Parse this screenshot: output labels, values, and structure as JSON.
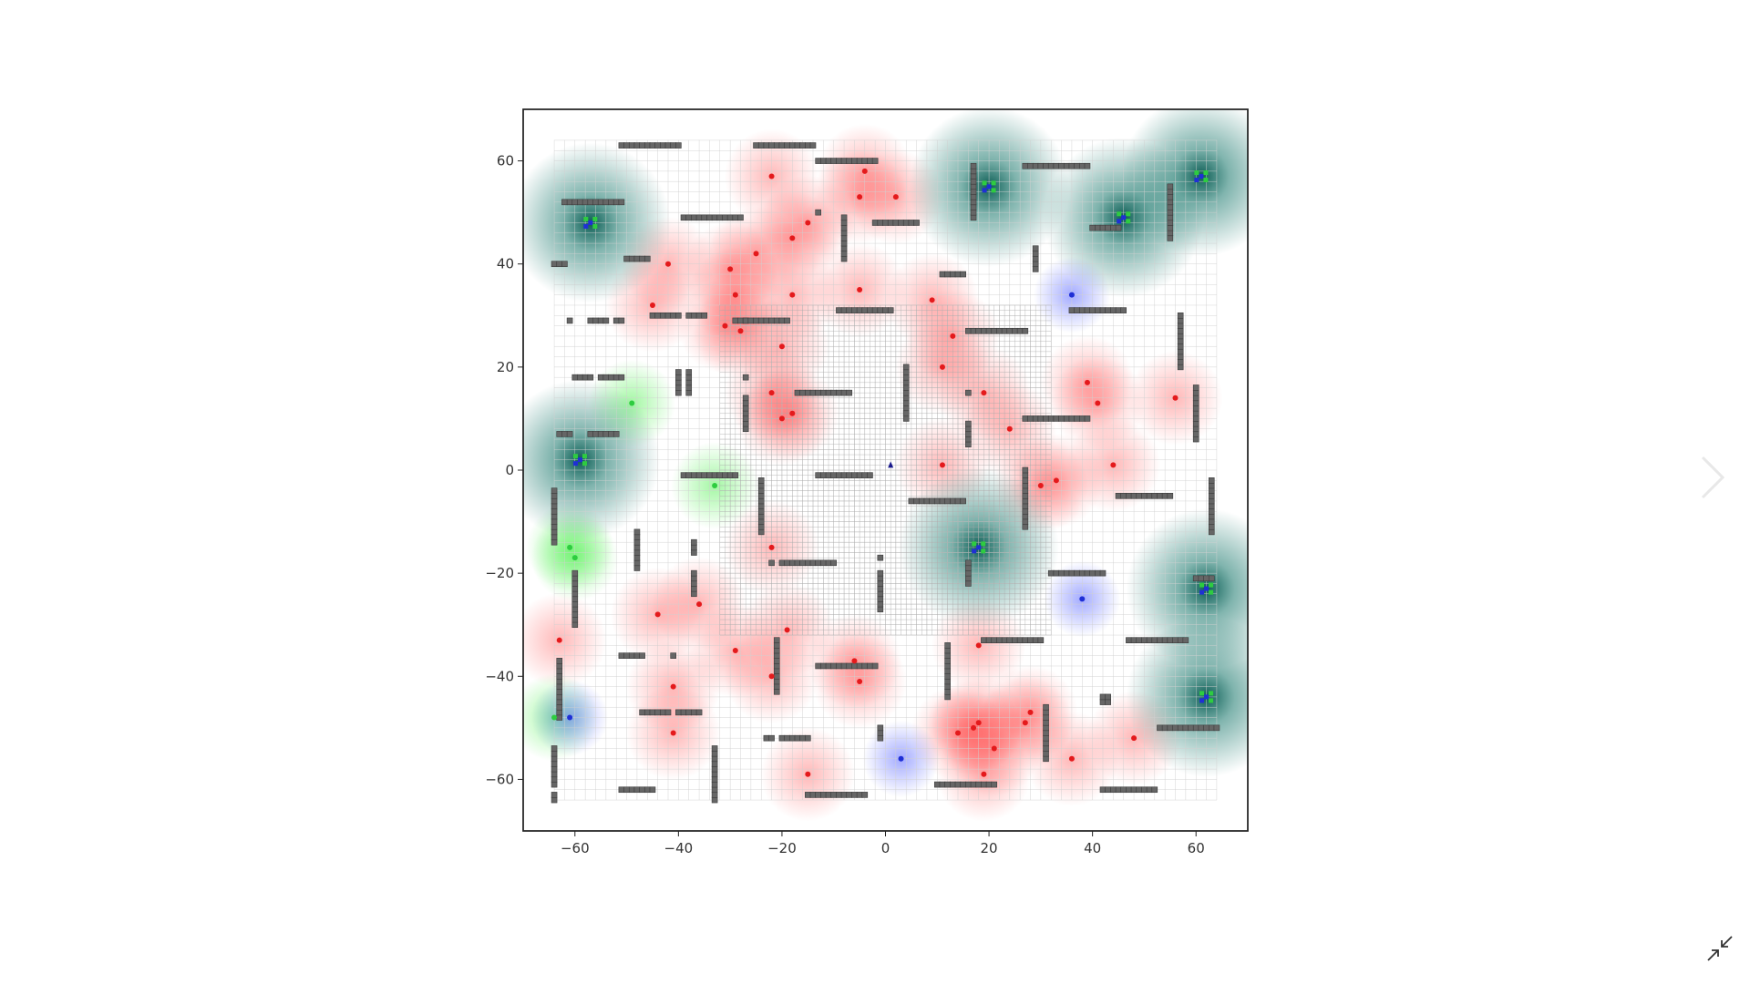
{
  "viewer": {
    "next_icon": "chevron-right-icon",
    "collapse_icon": "collapse-arrows-icon"
  },
  "chart_data": {
    "type": "scatter",
    "title": "",
    "xlabel": "",
    "ylabel": "",
    "xlim": [
      -70,
      70
    ],
    "ylim": [
      -70,
      70
    ],
    "x_ticks": [
      -60,
      -40,
      -20,
      0,
      20,
      40,
      60
    ],
    "y_ticks": [
      60,
      40,
      20,
      0,
      -20,
      -40,
      -60
    ],
    "grid": true,
    "grid_extent": [
      -64,
      64
    ],
    "dense_grid_region": {
      "x": [
        -32,
        32
      ],
      "y": [
        -32,
        32
      ]
    },
    "colors": {
      "red_source": "#e41a1c",
      "green_source": "#2ecc40",
      "teal_source": "#006d5b",
      "blue_source": "#1f2fd6",
      "obstacle": "#666666",
      "agent": "#1a1a8c"
    },
    "series": [
      {
        "key": "red",
        "points": [
          [
            -22,
            57
          ],
          [
            -4,
            58
          ],
          [
            -5,
            53
          ],
          [
            2,
            53
          ],
          [
            -15,
            48
          ],
          [
            -18,
            45
          ],
          [
            -25,
            42
          ],
          [
            -42,
            40
          ],
          [
            -30,
            39
          ],
          [
            -29,
            34
          ],
          [
            -18,
            34
          ],
          [
            -5,
            35
          ],
          [
            9,
            33
          ],
          [
            -45,
            32
          ],
          [
            -31,
            28
          ],
          [
            -28,
            27
          ],
          [
            13,
            26
          ],
          [
            -20,
            24
          ],
          [
            11,
            20
          ],
          [
            -22,
            15
          ],
          [
            19,
            15
          ],
          [
            39,
            17
          ],
          [
            41,
            13
          ],
          [
            56,
            14
          ],
          [
            -20,
            10
          ],
          [
            -18,
            11
          ],
          [
            24,
            8
          ],
          [
            11,
            1
          ],
          [
            44,
            1
          ],
          [
            30,
            -3
          ],
          [
            33,
            -2
          ],
          [
            -22,
            -15
          ],
          [
            -36,
            -26
          ],
          [
            -44,
            -28
          ],
          [
            -63,
            -33
          ],
          [
            -19,
            -31
          ],
          [
            -29,
            -35
          ],
          [
            18,
            -34
          ],
          [
            -6,
            -37
          ],
          [
            -41,
            -42
          ],
          [
            -5,
            -41
          ],
          [
            -22,
            -40
          ],
          [
            -41,
            -51
          ],
          [
            18,
            -49
          ],
          [
            17,
            -50
          ],
          [
            14,
            -51
          ],
          [
            28,
            -47
          ],
          [
            27,
            -49
          ],
          [
            48,
            -52
          ],
          [
            21,
            -54
          ],
          [
            36,
            -56
          ],
          [
            -15,
            -59
          ],
          [
            19,
            -59
          ]
        ]
      },
      {
        "key": "green",
        "points": [
          [
            -49,
            13
          ],
          [
            -33,
            -3
          ],
          [
            -61,
            -15
          ],
          [
            -60,
            -17
          ],
          [
            -64,
            -48
          ]
        ]
      },
      {
        "key": "teal",
        "points": [
          [
            -57,
            48
          ],
          [
            -59,
            2
          ],
          [
            20,
            55
          ],
          [
            46,
            49
          ],
          [
            61,
            57
          ],
          [
            18,
            -15
          ],
          [
            62,
            -23
          ],
          [
            62,
            -44
          ]
        ]
      },
      {
        "key": "blue",
        "points": [
          [
            36,
            34
          ],
          [
            38,
            -25
          ],
          [
            3,
            -56
          ],
          [
            -61,
            -48
          ]
        ]
      },
      {
        "key": "agent",
        "points": [
          [
            1,
            1
          ]
        ]
      }
    ],
    "obstacles": [
      {
        "x": [
          -51,
          -40
        ],
        "y": [
          63,
          63
        ]
      },
      {
        "x": [
          -25,
          -14
        ],
        "y": [
          63,
          63
        ]
      },
      {
        "x": [
          -13,
          -2
        ],
        "y": [
          60,
          60
        ]
      },
      {
        "x": [
          27,
          39
        ],
        "y": [
          59,
          59
        ]
      },
      {
        "x": [
          -62,
          -51
        ],
        "y": [
          52,
          52
        ]
      },
      {
        "x": [
          -39,
          -28
        ],
        "y": [
          49,
          49
        ]
      },
      {
        "x": [
          -8,
          -8
        ],
        "y": [
          49,
          41
        ]
      },
      {
        "x": [
          -13,
          -13
        ],
        "y": [
          50,
          50
        ]
      },
      {
        "x": [
          -2,
          6
        ],
        "y": [
          48,
          48
        ]
      },
      {
        "x": [
          17,
          17
        ],
        "y": [
          59,
          49
        ]
      },
      {
        "x": [
          40,
          45
        ],
        "y": [
          47,
          47
        ]
      },
      {
        "x": [
          55,
          55
        ],
        "y": [
          55,
          45
        ]
      },
      {
        "x": [
          -64,
          -62
        ],
        "y": [
          40,
          40
        ]
      },
      {
        "x": [
          -50,
          -46
        ],
        "y": [
          41,
          41
        ]
      },
      {
        "x": [
          11,
          15
        ],
        "y": [
          38,
          38
        ]
      },
      {
        "x": [
          29,
          29
        ],
        "y": [
          43,
          39
        ]
      },
      {
        "x": [
          -9,
          1
        ],
        "y": [
          31,
          31
        ]
      },
      {
        "x": [
          36,
          46
        ],
        "y": [
          31,
          31
        ]
      },
      {
        "x": [
          -61,
          -61
        ],
        "y": [
          29,
          29
        ]
      },
      {
        "x": [
          -57,
          -54
        ],
        "y": [
          29,
          29
        ]
      },
      {
        "x": [
          -52,
          -51
        ],
        "y": [
          29,
          29
        ]
      },
      {
        "x": [
          -45,
          -40
        ],
        "y": [
          30,
          30
        ]
      },
      {
        "x": [
          -38,
          -35
        ],
        "y": [
          30,
          30
        ]
      },
      {
        "x": [
          -29,
          -27
        ],
        "y": [
          29,
          29
        ]
      },
      {
        "x": [
          -27,
          -19
        ],
        "y": [
          29,
          29
        ]
      },
      {
        "x": [
          16,
          27
        ],
        "y": [
          27,
          27
        ]
      },
      {
        "x": [
          57,
          57
        ],
        "y": [
          30,
          20
        ]
      },
      {
        "x": [
          -60,
          -57
        ],
        "y": [
          18,
          18
        ]
      },
      {
        "x": [
          -55,
          -54
        ],
        "y": [
          18,
          18
        ]
      },
      {
        "x": [
          -53,
          -51
        ],
        "y": [
          18,
          18
        ]
      },
      {
        "x": [
          -40,
          -40
        ],
        "y": [
          19,
          15
        ]
      },
      {
        "x": [
          -38,
          -38
        ],
        "y": [
          19,
          15
        ]
      },
      {
        "x": [
          -27,
          -27
        ],
        "y": [
          18,
          18
        ]
      },
      {
        "x": [
          -27,
          -27
        ],
        "y": [
          14,
          8
        ]
      },
      {
        "x": [
          -17,
          -7
        ],
        "y": [
          15,
          15
        ]
      },
      {
        "x": [
          4,
          4
        ],
        "y": [
          20,
          11
        ]
      },
      {
        "x": [
          4,
          4
        ],
        "y": [
          10,
          11
        ]
      },
      {
        "x": [
          16,
          16
        ],
        "y": [
          15,
          15
        ]
      },
      {
        "x": [
          16,
          16
        ],
        "y": [
          9,
          5
        ]
      },
      {
        "x": [
          27,
          39
        ],
        "y": [
          10,
          10
        ]
      },
      {
        "x": [
          60,
          60
        ],
        "y": [
          16,
          6
        ]
      },
      {
        "x": [
          -63,
          -61
        ],
        "y": [
          7,
          7
        ]
      },
      {
        "x": [
          -57,
          -54
        ],
        "y": [
          7,
          7
        ]
      },
      {
        "x": [
          -53,
          -52
        ],
        "y": [
          7,
          7
        ]
      },
      {
        "x": [
          -39,
          -32
        ],
        "y": [
          -1,
          -1
        ]
      },
      {
        "x": [
          -31,
          -29
        ],
        "y": [
          -1,
          -1
        ]
      },
      {
        "x": [
          -13,
          -3
        ],
        "y": [
          -1,
          -1
        ]
      },
      {
        "x": [
          5,
          15
        ],
        "y": [
          -6,
          -6
        ]
      },
      {
        "x": [
          27,
          27
        ],
        "y": [
          0,
          -11
        ]
      },
      {
        "x": [
          45,
          55
        ],
        "y": [
          -5,
          -5
        ]
      },
      {
        "x": [
          63,
          63
        ],
        "y": [
          -2,
          -12
        ]
      },
      {
        "x": [
          -64,
          -64
        ],
        "y": [
          -4,
          -14
        ]
      },
      {
        "x": [
          -24,
          -24
        ],
        "y": [
          -2,
          -12
        ]
      },
      {
        "x": [
          -20,
          -10
        ],
        "y": [
          -18,
          -18
        ]
      },
      {
        "x": [
          -22,
          -22
        ],
        "y": [
          -18,
          -18
        ]
      },
      {
        "x": [
          -48,
          -48
        ],
        "y": [
          -12,
          -19
        ]
      },
      {
        "x": [
          -37,
          -37
        ],
        "y": [
          -14,
          -16
        ]
      },
      {
        "x": [
          -37,
          -37
        ],
        "y": [
          -20,
          -24
        ]
      },
      {
        "x": [
          -60,
          -60
        ],
        "y": [
          -20,
          -30
        ]
      },
      {
        "x": [
          -1,
          -1
        ],
        "y": [
          -17,
          -17
        ]
      },
      {
        "x": [
          -1,
          -1
        ],
        "y": [
          -20,
          -27
        ]
      },
      {
        "x": [
          16,
          16
        ],
        "y": [
          -18,
          -22
        ]
      },
      {
        "x": [
          32,
          42
        ],
        "y": [
          -20,
          -20
        ]
      },
      {
        "x": [
          60,
          63
        ],
        "y": [
          -21,
          -21
        ]
      },
      {
        "x": [
          -51,
          -47
        ],
        "y": [
          -36,
          -36
        ]
      },
      {
        "x": [
          -41,
          -41
        ],
        "y": [
          -36,
          -36
        ]
      },
      {
        "x": [
          -21,
          -21
        ],
        "y": [
          -33,
          -43
        ]
      },
      {
        "x": [
          -13,
          -2
        ],
        "y": [
          -38,
          -38
        ]
      },
      {
        "x": [
          12,
          12
        ],
        "y": [
          -34,
          -44
        ]
      },
      {
        "x": [
          19,
          30
        ],
        "y": [
          -33,
          -33
        ]
      },
      {
        "x": [
          47,
          58
        ],
        "y": [
          -33,
          -33
        ]
      },
      {
        "x": [
          -63,
          -63
        ],
        "y": [
          -37,
          -48
        ]
      },
      {
        "x": [
          -47,
          -42
        ],
        "y": [
          -47,
          -47
        ]
      },
      {
        "x": [
          -40,
          -36
        ],
        "y": [
          -47,
          -47
        ]
      },
      {
        "x": [
          42,
          43
        ],
        "y": [
          -44,
          -45
        ]
      },
      {
        "x": [
          31,
          31
        ],
        "y": [
          -46,
          -56
        ]
      },
      {
        "x": [
          53,
          64
        ],
        "y": [
          -50,
          -50
        ]
      },
      {
        "x": [
          -1,
          -1
        ],
        "y": [
          -50,
          -52
        ]
      },
      {
        "x": [
          -23,
          -22
        ],
        "y": [
          -52,
          -52
        ]
      },
      {
        "x": [
          -20,
          -15
        ],
        "y": [
          -52,
          -52
        ]
      },
      {
        "x": [
          -64,
          -64
        ],
        "y": [
          -54,
          -61
        ]
      },
      {
        "x": [
          -51,
          -45
        ],
        "y": [
          -62,
          -62
        ]
      },
      {
        "x": [
          -33,
          -33
        ],
        "y": [
          -54,
          -64
        ]
      },
      {
        "x": [
          -15,
          -4
        ],
        "y": [
          -63,
          -63
        ]
      },
      {
        "x": [
          10,
          21
        ],
        "y": [
          -61,
          -61
        ]
      },
      {
        "x": [
          42,
          52
        ],
        "y": [
          -62,
          -62
        ]
      },
      {
        "x": [
          -64,
          -64
        ],
        "y": [
          -63,
          -64
        ]
      }
    ]
  }
}
